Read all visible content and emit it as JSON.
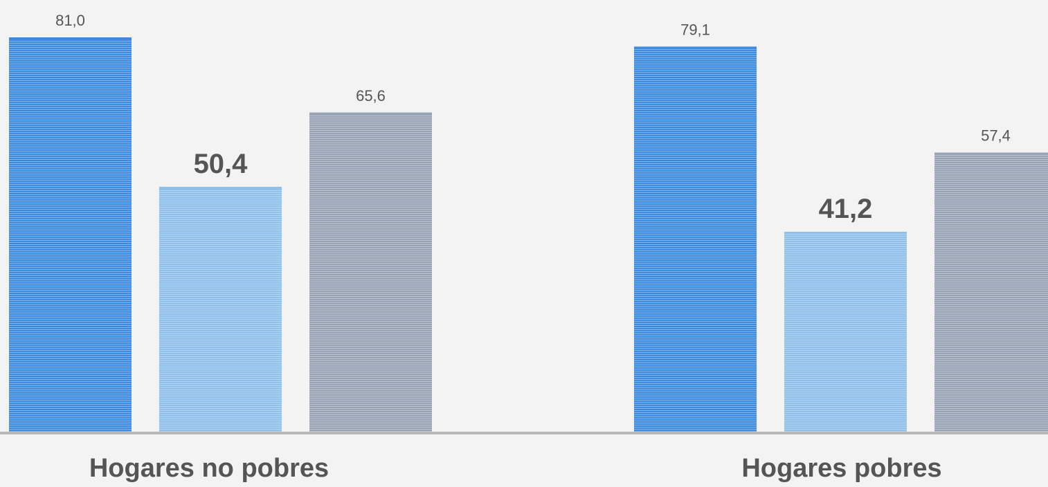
{
  "chart_data": {
    "type": "bar",
    "categories": [
      "Hogares no pobres",
      "Hogares pobres"
    ],
    "series": [
      {
        "values": [
          81.0,
          79.1
        ],
        "labels": [
          "81,0",
          "79,1"
        ],
        "color": "#3d8be0",
        "label_bold": false
      },
      {
        "values": [
          50.4,
          41.2
        ],
        "labels": [
          "50,4",
          "41,2"
        ],
        "color": "#8ec0ea",
        "label_bold": true
      },
      {
        "values": [
          65.6,
          57.4
        ],
        "labels": [
          "65,6",
          "57,4"
        ],
        "color": "#99a3b6",
        "label_bold": false
      }
    ],
    "ylim": [
      0,
      81.0
    ],
    "grid": false,
    "legend": "none"
  },
  "colors": {
    "background": "#f3f3f3",
    "axis": "#b8b8b8",
    "value_text": "#555555",
    "category_text": "#555555"
  }
}
